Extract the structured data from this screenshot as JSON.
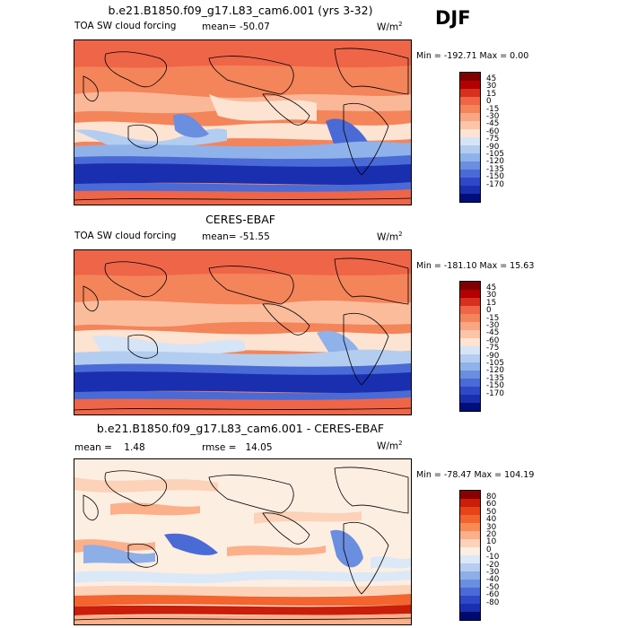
{
  "season": "DJF",
  "chart_data": [
    {
      "type": "heatmap",
      "title": "b.e21.B1850.f09_g17.L83_cam6.001 (yrs 3-32)",
      "variable": "TOA SW cloud forcing",
      "mean_text": "mean= -50.07",
      "units_text": "W/m",
      "units_exp": "2",
      "min_max_text": "Min = -192.71 Max =    0.00",
      "colorbar_labels": [
        "45",
        "30",
        "15",
        "0",
        "-15",
        "-30",
        "-45",
        "-60",
        "-75",
        "-90",
        "-105",
        "-120",
        "-135",
        "-150",
        "-170"
      ],
      "colorbar_colors": [
        "#7f0000",
        "#b30000",
        "#d7301f",
        "#ef6548",
        "#f4845a",
        "#f9a683",
        "#fcc5a8",
        "#fde3d2",
        "#d6e4f7",
        "#b3cdf0",
        "#8fb2ea",
        "#6a8ee0",
        "#4a6ad6",
        "#2e48c8",
        "#1a2fb0",
        "#000e7a"
      ]
    },
    {
      "type": "heatmap",
      "title": "CERES-EBAF",
      "variable": "TOA SW cloud forcing",
      "mean_text": "mean= -51.55",
      "units_text": "W/m",
      "units_exp": "2",
      "min_max_text": "Min = -181.10 Max =  15.63",
      "colorbar_labels": [
        "45",
        "30",
        "15",
        "0",
        "-15",
        "-30",
        "-45",
        "-60",
        "-75",
        "-90",
        "-105",
        "-120",
        "-135",
        "-150",
        "-170"
      ],
      "colorbar_colors": [
        "#7f0000",
        "#b30000",
        "#d7301f",
        "#ef6548",
        "#f4845a",
        "#f9a683",
        "#fcc5a8",
        "#fde3d2",
        "#d6e4f7",
        "#b3cdf0",
        "#8fb2ea",
        "#6a8ee0",
        "#4a6ad6",
        "#2e48c8",
        "#1a2fb0",
        "#000e7a"
      ]
    },
    {
      "type": "heatmap",
      "title": "b.e21.B1850.f09_g17.L83_cam6.001 - CERES-EBAF",
      "mean_text": "mean =    1.48",
      "rmse_text": "rmse =   14.05",
      "units_text": "W/m",
      "units_exp": "2",
      "min_max_text": "Min = -78.47 Max = 104.19",
      "colorbar_labels": [
        "80",
        "60",
        "50",
        "40",
        "30",
        "20",
        "10",
        "0",
        "-10",
        "-20",
        "-30",
        "-40",
        "-50",
        "-60",
        "-80"
      ],
      "colorbar_colors": [
        "#8b0000",
        "#c81e0a",
        "#e8421a",
        "#f4642e",
        "#f88a55",
        "#fbb08a",
        "#fcd2b8",
        "#fdeee2",
        "#dbe8f8",
        "#b6cdf1",
        "#8eaee8",
        "#6a8ee0",
        "#4a6ad6",
        "#2e48c8",
        "#1a2fb0",
        "#000a6e"
      ]
    }
  ]
}
